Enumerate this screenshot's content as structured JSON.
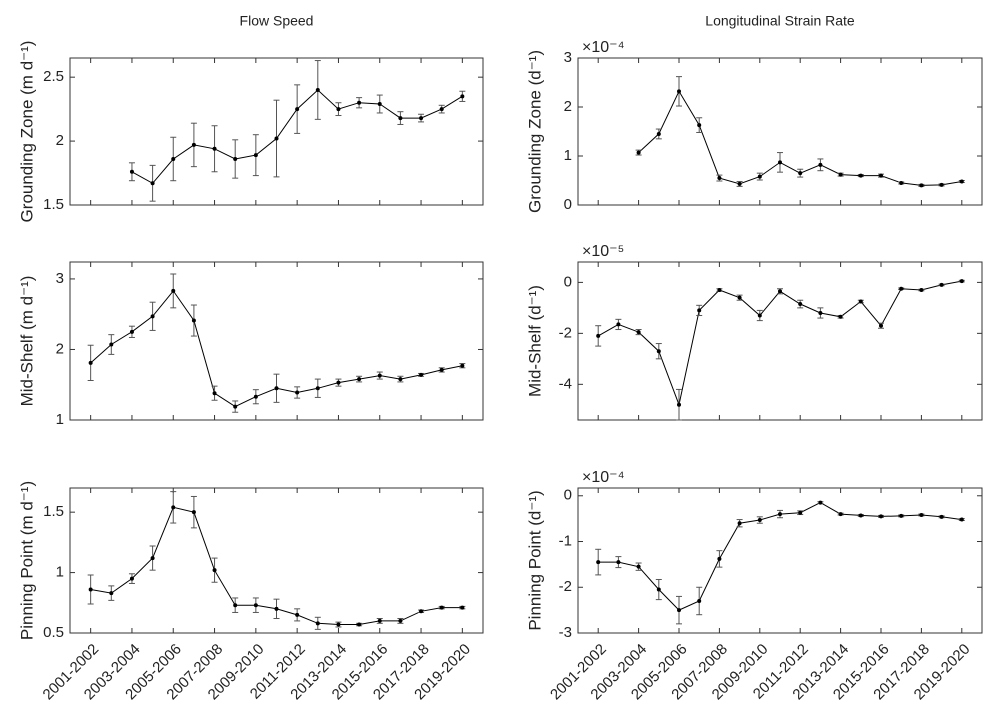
{
  "chart_data": [
    {
      "type": "line",
      "title": "Flow Speed",
      "ylabel": "Grounding Zone (m d⁻¹)",
      "color": "#000000",
      "values": [
        null,
        null,
        1.76,
        1.67,
        1.86,
        1.97,
        1.94,
        1.86,
        1.89,
        2.02,
        2.25,
        2.4,
        2.25,
        2.3,
        2.29,
        2.18,
        2.18,
        2.25,
        2.35
      ],
      "errors": [
        null,
        null,
        0.07,
        0.14,
        0.17,
        0.17,
        0.18,
        0.15,
        0.16,
        0.3,
        0.19,
        0.23,
        0.05,
        0.04,
        0.07,
        0.05,
        0.03,
        0.03,
        0.04
      ],
      "ylim": [
        1.5,
        2.65
      ],
      "yticks": [
        1.5,
        2,
        2.5
      ]
    },
    {
      "type": "line",
      "ylabel": "Mid-Shelf (m d⁻¹)",
      "color": "#000000",
      "values": [
        1.81,
        2.07,
        2.25,
        2.47,
        2.83,
        2.41,
        1.38,
        1.19,
        1.33,
        1.45,
        1.39,
        1.45,
        1.53,
        1.58,
        1.63,
        1.58,
        1.64,
        1.71,
        1.77
      ],
      "errors": [
        0.25,
        0.14,
        0.08,
        0.2,
        0.24,
        0.22,
        0.1,
        0.08,
        0.1,
        0.2,
        0.08,
        0.13,
        0.05,
        0.04,
        0.05,
        0.04,
        0.02,
        0.03,
        0.03
      ],
      "ylim": [
        1,
        3.24
      ],
      "yticks": [
        1,
        2,
        3
      ]
    },
    {
      "type": "line",
      "ylabel": "Pinning Point (m d⁻¹)",
      "color": "#000000",
      "categories": [
        "2001-2002",
        null,
        "2003-2004",
        null,
        "2005-2006",
        null,
        "2007-2008",
        null,
        "2009-2010",
        null,
        "2011-2012",
        null,
        "2013-2014",
        null,
        "2015-2016",
        null,
        "2017-2018",
        null,
        "2019-2020"
      ],
      "values": [
        0.86,
        0.83,
        0.95,
        1.12,
        1.54,
        1.5,
        1.02,
        0.73,
        0.73,
        0.7,
        0.65,
        0.58,
        0.57,
        0.57,
        0.6,
        0.6,
        0.68,
        0.71,
        0.71
      ],
      "errors": [
        0.12,
        0.06,
        0.04,
        0.1,
        0.13,
        0.13,
        0.1,
        0.06,
        0.06,
        0.08,
        0.05,
        0.05,
        0.02,
        0.01,
        0.02,
        0.02,
        0.01,
        0.01,
        0.01
      ],
      "ylim": [
        0.5,
        1.7
      ],
      "yticks": [
        0.5,
        1,
        1.5
      ]
    },
    {
      "type": "line",
      "title": "Longitudinal Strain Rate",
      "ylabel": "Grounding Zone (d⁻¹)",
      "exponent": "×10⁻⁴",
      "color": "#000000",
      "values": [
        null,
        null,
        1.07,
        1.45,
        2.32,
        1.63,
        0.55,
        0.43,
        0.58,
        0.87,
        0.65,
        0.82,
        0.62,
        0.6,
        0.6,
        0.45,
        0.4,
        0.41,
        0.48
      ],
      "errors": [
        null,
        null,
        0.05,
        0.1,
        0.3,
        0.15,
        0.06,
        0.05,
        0.07,
        0.2,
        0.08,
        0.12,
        0.03,
        0.02,
        0.03,
        0.02,
        0.02,
        0.02,
        0.02
      ],
      "ylim": [
        0,
        3
      ],
      "yticks": [
        0,
        1,
        2,
        3
      ]
    },
    {
      "type": "line",
      "ylabel": "Mid-Shelf (d⁻¹)",
      "exponent": "×10⁻⁵",
      "color": "#000000",
      "values": [
        -2.1,
        -1.65,
        -1.95,
        -2.7,
        -4.8,
        -1.1,
        -0.3,
        -0.6,
        -1.3,
        -0.35,
        -0.85,
        -1.2,
        -1.35,
        -0.75,
        -1.7,
        -0.25,
        -0.3,
        -0.1,
        0.05
      ],
      "errors": [
        0.4,
        0.2,
        0.1,
        0.3,
        0.6,
        0.2,
        0.05,
        0.1,
        0.2,
        0.1,
        0.15,
        0.2,
        0.05,
        0.05,
        0.1,
        0.03,
        0.03,
        0.03,
        0.03
      ],
      "ylim": [
        -5.4,
        0.8
      ],
      "yticks": [
        -4,
        -2,
        0
      ]
    },
    {
      "type": "line",
      "ylabel": "Pinning Point (d⁻¹)",
      "exponent": "×10⁻⁴",
      "color": "#000000",
      "categories": [
        "2001-2002",
        null,
        "2003-2004",
        null,
        "2005-2006",
        null,
        "2007-2008",
        null,
        "2009-2010",
        null,
        "2011-2012",
        null,
        "2013-2014",
        null,
        "2015-2016",
        null,
        "2017-2018",
        null,
        "2019-2020"
      ],
      "values": [
        -1.45,
        -1.45,
        -1.55,
        -2.05,
        -2.5,
        -2.3,
        -1.38,
        -0.6,
        -0.53,
        -0.4,
        -0.37,
        -0.15,
        -0.4,
        -0.43,
        -0.45,
        -0.44,
        -0.42,
        -0.46,
        -0.52
      ],
      "errors": [
        0.28,
        0.12,
        0.08,
        0.22,
        0.3,
        0.3,
        0.18,
        0.08,
        0.07,
        0.08,
        0.04,
        0.02,
        0.02,
        0.02,
        0.02,
        0.02,
        0.02,
        0.02,
        0.02
      ],
      "ylim": [
        -3,
        0.17
      ],
      "yticks": [
        -3,
        -2,
        -1,
        0
      ]
    }
  ]
}
